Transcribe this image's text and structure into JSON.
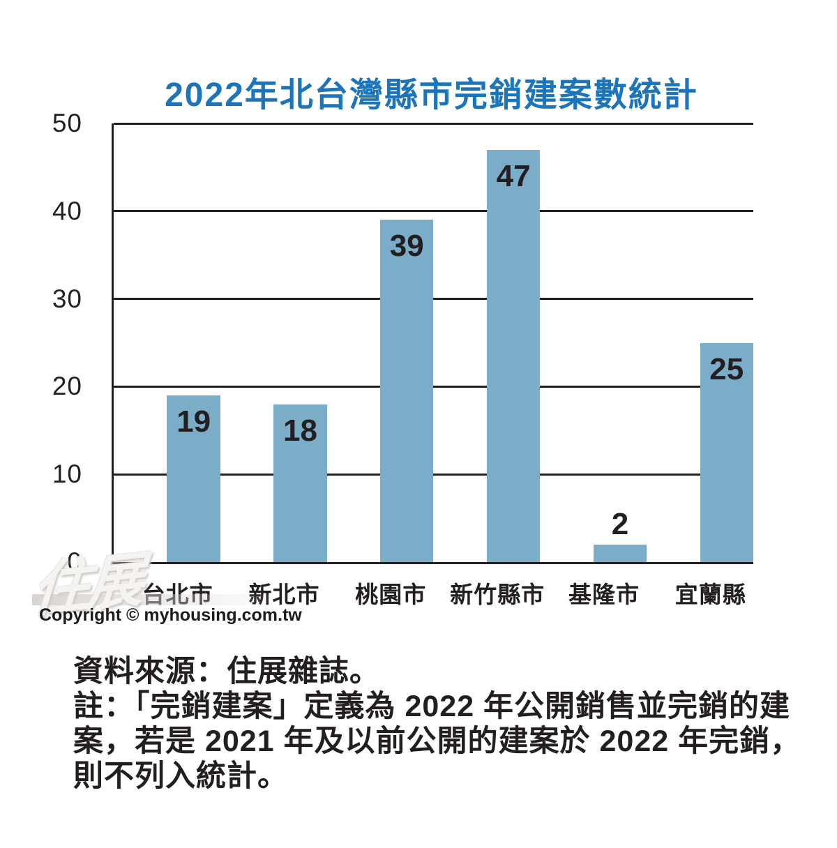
{
  "title": "2022年北台灣縣市完銷建案數統計",
  "watermark": "住展",
  "copyright": "Copyright © myhousing.com.tw",
  "footer": {
    "lines": [
      "資料來源：住展雜誌。",
      "註：「完銷建案」定義為 2022 年公開銷售並完銷的建",
      "案，若是 2021 年及以前公開的建案於 2022 年完銷，",
      "則不列入統計。"
    ]
  },
  "chart_data": {
    "type": "bar",
    "title": "2022年北台灣縣市完銷建案數統計",
    "categories": [
      "台北市",
      "新北市",
      "桃園市",
      "新竹縣市",
      "基隆市",
      "宜蘭縣"
    ],
    "values": [
      19,
      18,
      39,
      47,
      2,
      25
    ],
    "xlabel": "",
    "ylabel": "",
    "ylim": [
      0,
      50
    ],
    "yticks": [
      0,
      10,
      20,
      30,
      40,
      50
    ],
    "grid": true,
    "legend_position": "none",
    "colors": {
      "bar": "#7badc9",
      "title": "#1c74bb",
      "text": "#231f20",
      "grid": "#231f20"
    }
  }
}
